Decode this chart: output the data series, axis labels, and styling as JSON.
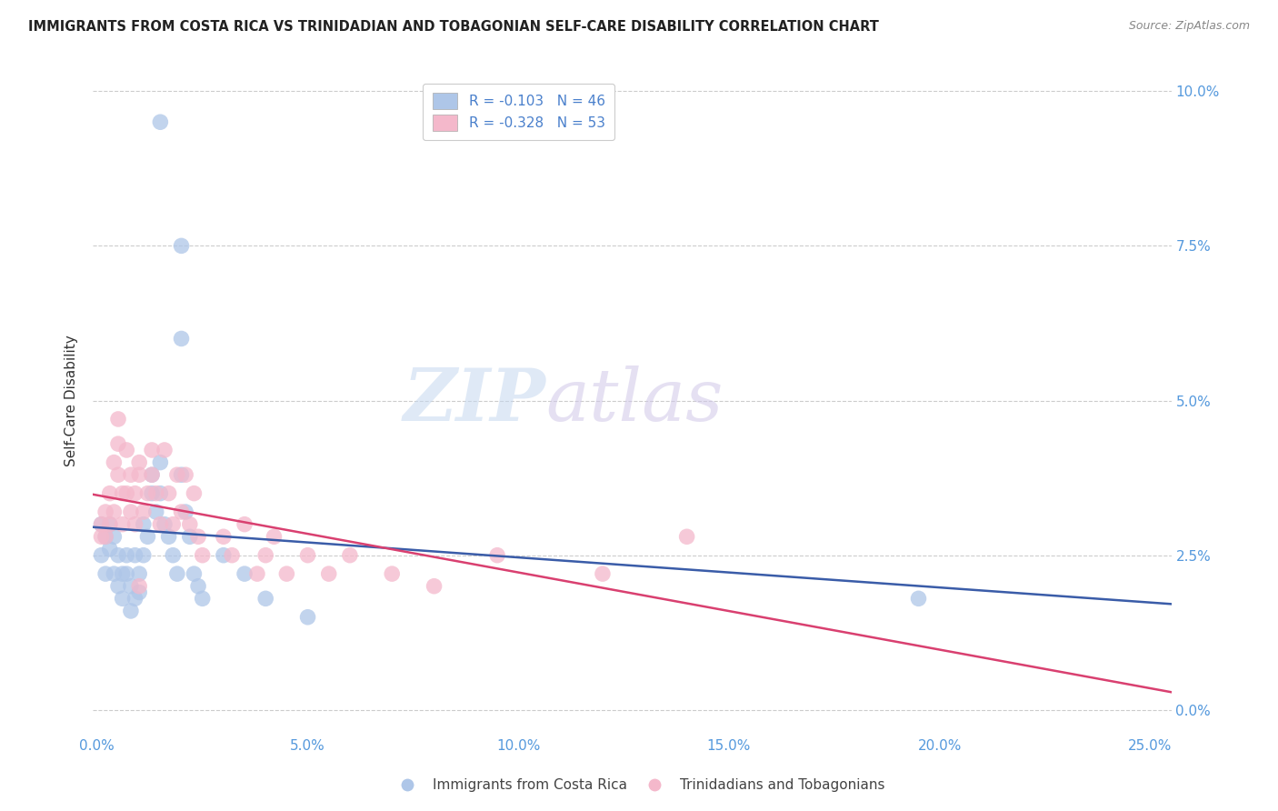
{
  "title": "IMMIGRANTS FROM COSTA RICA VS TRINIDADIAN AND TOBAGONIAN SELF-CARE DISABILITY CORRELATION CHART",
  "source": "Source: ZipAtlas.com",
  "ylabel": "Self-Care Disability",
  "xlabel_ticks": [
    "0.0%",
    "5.0%",
    "10.0%",
    "15.0%",
    "20.0%",
    "25.0%"
  ],
  "xlabel_vals": [
    0.0,
    0.05,
    0.1,
    0.15,
    0.2,
    0.25
  ],
  "ylabel_ticks": [
    "0.0%",
    "2.5%",
    "5.0%",
    "7.5%",
    "10.0%"
  ],
  "ylabel_vals": [
    0.0,
    0.025,
    0.05,
    0.075,
    0.1
  ],
  "xlim": [
    -0.001,
    0.255
  ],
  "ylim": [
    -0.004,
    0.104
  ],
  "legend_r_blue": "-0.103",
  "legend_n_blue": "46",
  "legend_r_pink": "-0.328",
  "legend_n_pink": "53",
  "legend_label_blue": "Immigrants from Costa Rica",
  "legend_label_pink": "Trinidadians and Tobagonians",
  "color_blue": "#aec6e8",
  "color_pink": "#f4b8cb",
  "line_blue": "#3a5ca8",
  "line_pink": "#d94070",
  "watermark_zip": "ZIP",
  "watermark_atlas": "atlas",
  "blue_x": [
    0.001,
    0.001,
    0.002,
    0.002,
    0.003,
    0.003,
    0.004,
    0.004,
    0.005,
    0.005,
    0.006,
    0.006,
    0.007,
    0.007,
    0.008,
    0.008,
    0.009,
    0.009,
    0.01,
    0.01,
    0.011,
    0.011,
    0.012,
    0.013,
    0.013,
    0.014,
    0.015,
    0.015,
    0.016,
    0.017,
    0.018,
    0.019,
    0.02,
    0.021,
    0.022,
    0.023,
    0.024,
    0.025,
    0.03,
    0.035,
    0.04,
    0.05,
    0.195,
    0.015,
    0.02,
    0.02
  ],
  "blue_y": [
    0.03,
    0.025,
    0.028,
    0.022,
    0.03,
    0.026,
    0.022,
    0.028,
    0.025,
    0.02,
    0.022,
    0.018,
    0.025,
    0.022,
    0.02,
    0.016,
    0.025,
    0.018,
    0.022,
    0.019,
    0.025,
    0.03,
    0.028,
    0.035,
    0.038,
    0.032,
    0.04,
    0.035,
    0.03,
    0.028,
    0.025,
    0.022,
    0.038,
    0.032,
    0.028,
    0.022,
    0.02,
    0.018,
    0.025,
    0.022,
    0.018,
    0.015,
    0.018,
    0.095,
    0.075,
    0.06
  ],
  "pink_x": [
    0.001,
    0.001,
    0.002,
    0.002,
    0.003,
    0.003,
    0.004,
    0.004,
    0.005,
    0.005,
    0.006,
    0.006,
    0.007,
    0.007,
    0.008,
    0.008,
    0.009,
    0.009,
    0.01,
    0.01,
    0.011,
    0.012,
    0.013,
    0.013,
    0.014,
    0.015,
    0.016,
    0.017,
    0.018,
    0.019,
    0.02,
    0.021,
    0.022,
    0.023,
    0.024,
    0.025,
    0.03,
    0.032,
    0.035,
    0.038,
    0.04,
    0.042,
    0.045,
    0.05,
    0.055,
    0.06,
    0.07,
    0.08,
    0.095,
    0.12,
    0.005,
    0.01,
    0.14
  ],
  "pink_y": [
    0.03,
    0.028,
    0.032,
    0.028,
    0.035,
    0.03,
    0.04,
    0.032,
    0.043,
    0.038,
    0.035,
    0.03,
    0.042,
    0.035,
    0.032,
    0.038,
    0.03,
    0.035,
    0.04,
    0.038,
    0.032,
    0.035,
    0.042,
    0.038,
    0.035,
    0.03,
    0.042,
    0.035,
    0.03,
    0.038,
    0.032,
    0.038,
    0.03,
    0.035,
    0.028,
    0.025,
    0.028,
    0.025,
    0.03,
    0.022,
    0.025,
    0.028,
    0.022,
    0.025,
    0.022,
    0.025,
    0.022,
    0.02,
    0.025,
    0.022,
    0.047,
    0.02,
    0.028
  ]
}
